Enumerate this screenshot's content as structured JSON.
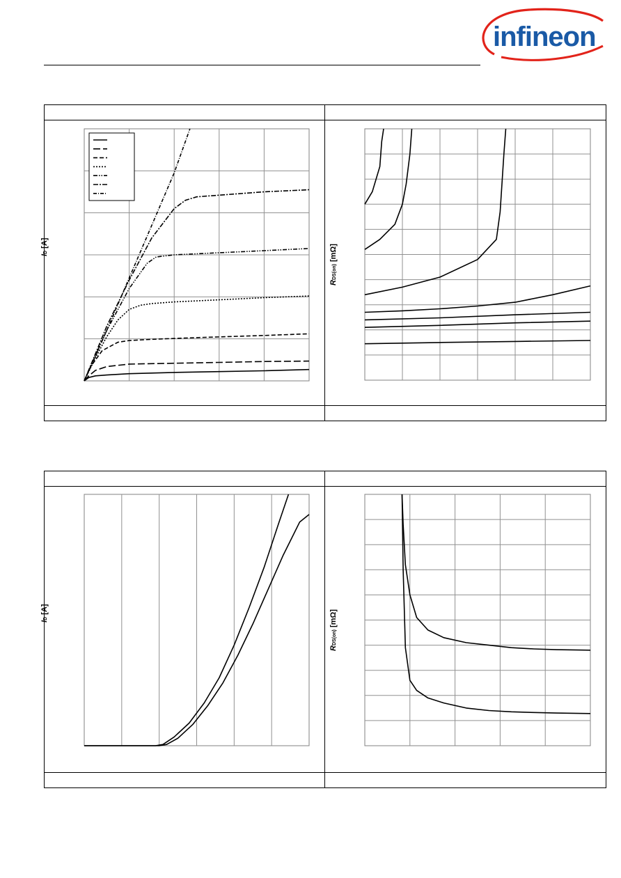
{
  "header": {
    "logo_text": "infineon",
    "brand_color": "#1a5aa6",
    "swoosh_color": "#e2231a"
  },
  "chart_data": [
    {
      "id": "diagram-output-characteristics",
      "type": "line",
      "title": "",
      "xlabel": "",
      "ylabel_var": "I",
      "ylabel_sub": "D",
      "ylabel_unit": " [A]",
      "xlim": [
        0,
        10
      ],
      "ylim": [
        0,
        6
      ],
      "grid": true,
      "legend_position": "top-left",
      "series": [
        {
          "dash": "solid",
          "x": [
            0,
            0.2,
            0.5,
            1,
            2,
            4,
            6,
            8,
            10
          ],
          "y": [
            0,
            0.08,
            0.12,
            0.14,
            0.17,
            0.2,
            0.22,
            0.24,
            0.27
          ]
        },
        {
          "dash": "long-dash",
          "x": [
            0,
            0.2,
            0.5,
            1,
            2,
            4,
            6,
            8,
            10
          ],
          "y": [
            0,
            0.12,
            0.25,
            0.34,
            0.4,
            0.42,
            0.44,
            0.46,
            0.47
          ]
        },
        {
          "dash": "dash",
          "x": [
            0,
            0.3,
            0.8,
            1.5,
            2,
            3,
            5,
            8,
            10
          ],
          "y": [
            0,
            0.35,
            0.72,
            0.92,
            0.96,
            0.99,
            1.03,
            1.08,
            1.12
          ]
        },
        {
          "dash": "dot",
          "x": [
            0,
            0.5,
            1,
            1.5,
            2,
            2.5,
            3,
            4,
            6,
            8,
            10
          ],
          "y": [
            0,
            0.55,
            1.05,
            1.45,
            1.7,
            1.8,
            1.84,
            1.88,
            1.93,
            1.98,
            2.02
          ]
        },
        {
          "dash": "dash-dot-dot",
          "x": [
            0,
            0.5,
            1,
            2,
            2.8,
            3.2,
            4,
            6,
            8,
            10
          ],
          "y": [
            0,
            0.6,
            1.2,
            2.2,
            2.8,
            2.95,
            3.0,
            3.05,
            3.1,
            3.15
          ]
        },
        {
          "dash": "dash-dot",
          "x": [
            0,
            0.5,
            1,
            2,
            3,
            4,
            4.5,
            5,
            6,
            8,
            10
          ],
          "y": [
            0,
            0.65,
            1.3,
            2.4,
            3.4,
            4.1,
            4.3,
            4.38,
            4.42,
            4.5,
            4.55
          ]
        },
        {
          "dash": "dash-dot-fine",
          "x": [
            0,
            1,
            2,
            3,
            4,
            4.7
          ],
          "y": [
            0,
            1.2,
            2.45,
            3.7,
            4.95,
            6.0
          ]
        }
      ]
    },
    {
      "id": "diagram-rdson-vs-id",
      "type": "line",
      "title": "",
      "xlabel": "",
      "ylabel_var": "R",
      "ylabel_sub": "DS(on)",
      "ylabel_unit": " [mΩ]",
      "xlim": [
        0,
        6
      ],
      "ylim": [
        0,
        10
      ],
      "grid": true,
      "series": [
        {
          "dash": "solid",
          "x": [
            0,
            0.2,
            0.4,
            0.45,
            0.5
          ],
          "y": [
            7,
            7.5,
            8.5,
            9.5,
            10
          ]
        },
        {
          "dash": "solid",
          "x": [
            0,
            0.4,
            0.8,
            1.0,
            1.1,
            1.2,
            1.25
          ],
          "y": [
            5.2,
            5.6,
            6.2,
            7.0,
            7.8,
            9.0,
            10
          ]
        },
        {
          "dash": "solid",
          "x": [
            0,
            1,
            2,
            3,
            3.5,
            3.6,
            3.7,
            3.75
          ],
          "y": [
            3.4,
            3.7,
            4.1,
            4.8,
            5.6,
            6.7,
            9,
            10
          ]
        },
        {
          "dash": "solid",
          "x": [
            0,
            1,
            2,
            3,
            4,
            5,
            6
          ],
          "y": [
            2.7,
            2.76,
            2.84,
            2.95,
            3.1,
            3.4,
            3.75
          ]
        },
        {
          "dash": "solid",
          "x": [
            0,
            2,
            4,
            6
          ],
          "y": [
            2.4,
            2.48,
            2.6,
            2.7
          ]
        },
        {
          "dash": "solid",
          "x": [
            0,
            2,
            4,
            6
          ],
          "y": [
            2.1,
            2.18,
            2.28,
            2.35
          ]
        },
        {
          "dash": "solid",
          "x": [
            0,
            2,
            4,
            6
          ],
          "y": [
            1.45,
            1.5,
            1.54,
            1.58
          ]
        }
      ]
    },
    {
      "id": "diagram-transfer-characteristics",
      "type": "line",
      "title": "",
      "xlabel": "",
      "ylabel_var": "I",
      "ylabel_sub": "D",
      "ylabel_unit": " [A]",
      "xlim": [
        0,
        6
      ],
      "ylim": [
        0,
        10
      ],
      "grid": true,
      "series": [
        {
          "dash": "solid",
          "x": [
            0,
            1,
            1.9,
            2.1,
            2.4,
            2.8,
            3.2,
            3.6,
            4.0,
            4.4,
            4.8,
            5.2,
            5.45
          ],
          "y": [
            0,
            0,
            0,
            0.05,
            0.35,
            0.9,
            1.7,
            2.7,
            4.0,
            5.5,
            7.1,
            8.9,
            10
          ]
        },
        {
          "dash": "solid",
          "x": [
            0,
            1,
            2.0,
            2.2,
            2.5,
            2.9,
            3.3,
            3.7,
            4.1,
            4.5,
            4.9,
            5.3,
            5.75,
            6.0
          ],
          "y": [
            0,
            0,
            0,
            0.05,
            0.3,
            0.85,
            1.6,
            2.5,
            3.6,
            4.85,
            6.2,
            7.55,
            8.9,
            9.2
          ]
        }
      ]
    },
    {
      "id": "diagram-rdson-vs-vgs",
      "type": "line",
      "title": "",
      "xlabel": "",
      "ylabel_var": "R",
      "ylabel_sub": "DS(on)",
      "ylabel_unit": " [mΩ]",
      "xlim": [
        0,
        10
      ],
      "ylim": [
        0,
        10
      ],
      "grid": true,
      "series": [
        {
          "dash": "solid",
          "x": [
            1.65,
            1.7,
            1.8,
            2.0,
            2.3,
            2.8,
            3.5,
            4.5,
            5.5,
            6.5,
            7.5,
            8.5,
            10
          ],
          "y": [
            10,
            8.8,
            7.2,
            6.0,
            5.1,
            4.6,
            4.3,
            4.1,
            4.0,
            3.9,
            3.85,
            3.82,
            3.8
          ]
        },
        {
          "dash": "solid",
          "x": [
            1.65,
            1.7,
            1.8,
            2.0,
            2.3,
            2.8,
            3.5,
            4.5,
            5.5,
            6.5,
            7.5,
            8.5,
            10
          ],
          "y": [
            10,
            7.0,
            3.9,
            2.6,
            2.2,
            1.9,
            1.7,
            1.5,
            1.4,
            1.35,
            1.32,
            1.3,
            1.28
          ]
        }
      ]
    }
  ]
}
